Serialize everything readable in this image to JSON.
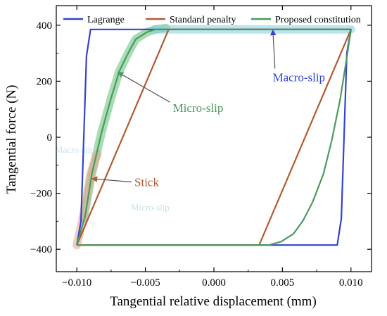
{
  "chart_data": {
    "type": "line",
    "title": "",
    "xlabel": "Tangential relative displacement (mm)",
    "ylabel": "Tangential force (N)",
    "xlim": [
      -0.0115,
      0.0115
    ],
    "ylim": [
      -480,
      470
    ],
    "x_ticks": [
      -0.01,
      -0.005,
      0.0,
      0.005,
      0.01
    ],
    "x_tick_labels": [
      "−0.010",
      "−0.005",
      "0.000",
      "0.005",
      "0.010"
    ],
    "y_ticks": [
      -400,
      -200,
      0,
      200,
      400
    ],
    "y_tick_labels": [
      "−400",
      "−200",
      "0",
      "200",
      "400"
    ],
    "grid": false,
    "legend_position": "top",
    "series": [
      {
        "name": "Lagrange",
        "color": "#3344cc",
        "points": [
          [
            -0.01,
            -385
          ],
          [
            -0.0097,
            -300
          ],
          [
            -0.0093,
            290
          ],
          [
            -0.009,
            385
          ],
          [
            0.01,
            385
          ],
          [
            0.0097,
            300
          ],
          [
            0.0093,
            -290
          ],
          [
            0.009,
            -385
          ],
          [
            -0.01,
            -385
          ]
        ]
      },
      {
        "name": "Standard penalty",
        "color": "#b35a32",
        "points": [
          [
            -0.01,
            -385
          ],
          [
            -0.0033,
            385
          ],
          [
            0.01,
            385
          ],
          [
            0.0033,
            -385
          ],
          [
            -0.01,
            -385
          ]
        ]
      },
      {
        "name": "Proposed constitution",
        "color": "#4c9a5e",
        "points": [
          [
            -0.01,
            -385
          ],
          [
            -0.0094,
            -283
          ],
          [
            -0.0089,
            -130
          ],
          [
            -0.0082,
            17
          ],
          [
            -0.0075,
            140
          ],
          [
            -0.0069,
            236
          ],
          [
            -0.0062,
            306
          ],
          [
            -0.0057,
            350
          ],
          [
            -0.0049,
            375
          ],
          [
            -0.0043,
            385
          ],
          [
            0.01,
            385
          ],
          [
            0.0097,
            285
          ],
          [
            0.0092,
            132
          ],
          [
            0.0086,
            -11
          ],
          [
            0.008,
            -130
          ],
          [
            0.0072,
            -232
          ],
          [
            0.0065,
            -298
          ],
          [
            0.0058,
            -345
          ],
          [
            0.0049,
            -373
          ],
          [
            0.004,
            -385
          ],
          [
            -0.01,
            -385
          ]
        ]
      }
    ],
    "highlights": [
      {
        "name": "micro-slip-band",
        "color": "#5fbf78",
        "points": [
          [
            -0.0095,
            -290
          ],
          [
            -0.0089,
            -130
          ],
          [
            -0.0082,
            17
          ],
          [
            -0.0075,
            140
          ],
          [
            -0.0069,
            236
          ],
          [
            -0.0062,
            306
          ],
          [
            -0.0057,
            350
          ],
          [
            -0.0049,
            375
          ],
          [
            -0.0043,
            385
          ],
          [
            -0.0035,
            390
          ]
        ]
      },
      {
        "name": "macro-slip-band",
        "color": "#7fd0dc",
        "points": [
          [
            -0.0043,
            385
          ],
          [
            0.01,
            385
          ]
        ]
      },
      {
        "name": "stick-band",
        "color": "#e7a08c",
        "points": [
          [
            -0.01,
            -385
          ],
          [
            -0.0096,
            -300
          ],
          [
            -0.009,
            -130
          ],
          [
            -0.0085,
            -60
          ]
        ]
      }
    ],
    "annotations": [
      {
        "name": "macro-slip-annotation",
        "text": "Macro-slip",
        "color": "#3344cc",
        "label_at": [
          0.0062,
          200
        ],
        "arrow_to": [
          0.0043,
          383
        ]
      },
      {
        "name": "micro-slip-annotation",
        "text": "Micro-slip",
        "color": "#4c9a5e",
        "label_at": [
          -0.003,
          90
        ],
        "arrow_to": [
          -0.007,
          232
        ]
      },
      {
        "name": "stick-annotation",
        "text": "Stick",
        "color": "#b35a32",
        "label_at": [
          -0.0058,
          -175
        ],
        "arrow_to": [
          -0.0089,
          -148
        ]
      }
    ],
    "watermark": [
      "Macro-slip",
      "Micro-slip"
    ]
  }
}
